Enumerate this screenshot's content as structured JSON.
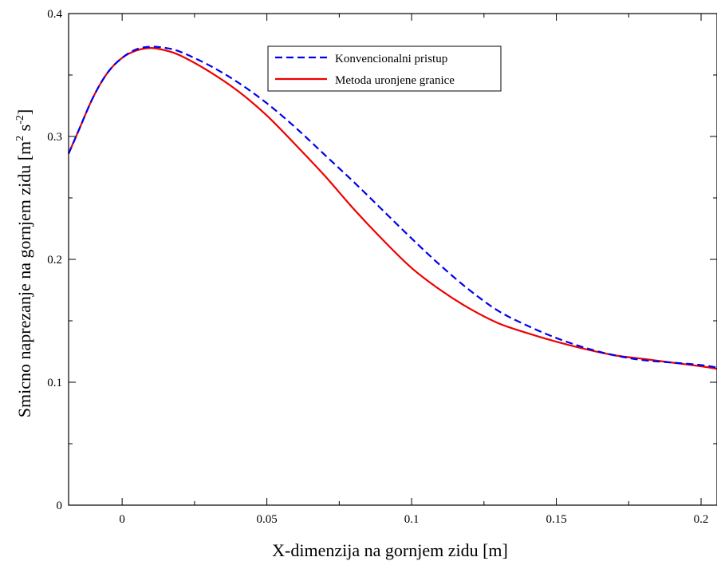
{
  "chart_data": {
    "type": "line",
    "title": "",
    "xlabel": "X-dimenzija na gornjem zidu [m]",
    "ylabel": {
      "text": "Smicno naprezanje na gornjem zidu [m",
      "sup1": "2",
      "mid": " s",
      "sup2": "-2",
      "close": "]"
    },
    "xlim": [
      -0.0185,
      0.2055
    ],
    "ylim": [
      0,
      0.4
    ],
    "xticks": [
      0,
      0.05,
      0.1,
      0.15,
      0.2
    ],
    "xtick_labels": [
      "0",
      "0.05",
      "0.1",
      "0.15",
      "0.2"
    ],
    "yticks": [
      0,
      0.1,
      0.2,
      0.3,
      0.4
    ],
    "ytick_labels": [
      "0",
      "0.1",
      "0.2",
      "0.3",
      "0.4"
    ],
    "grid": false,
    "legend_position": "top-center",
    "series": [
      {
        "name": "Konvencionalni pristup",
        "color": "#0000ee",
        "style": "dashed",
        "x": [
          -0.0185,
          -0.015,
          -0.01,
          -0.005,
          0,
          0.005,
          0.01,
          0.015,
          0.02,
          0.03,
          0.04,
          0.05,
          0.06,
          0.07,
          0.08,
          0.09,
          0.1,
          0.11,
          0.12,
          0.13,
          0.14,
          0.15,
          0.16,
          0.17,
          0.18,
          0.19,
          0.2,
          0.2055
        ],
        "y": [
          0.286,
          0.305,
          0.332,
          0.352,
          0.364,
          0.371,
          0.373,
          0.372,
          0.369,
          0.358,
          0.344,
          0.327,
          0.307,
          0.285,
          0.263,
          0.24,
          0.217,
          0.195,
          0.175,
          0.158,
          0.146,
          0.136,
          0.128,
          0.122,
          0.118,
          0.116,
          0.114,
          0.112
        ]
      },
      {
        "name": "Metoda uronjene granice",
        "color": "#ee0000",
        "style": "solid",
        "x": [
          -0.0185,
          -0.015,
          -0.01,
          -0.005,
          0,
          0.005,
          0.01,
          0.015,
          0.02,
          0.03,
          0.04,
          0.05,
          0.06,
          0.07,
          0.08,
          0.09,
          0.1,
          0.11,
          0.12,
          0.13,
          0.14,
          0.15,
          0.16,
          0.17,
          0.18,
          0.19,
          0.2,
          0.2055
        ],
        "y": [
          0.286,
          0.305,
          0.332,
          0.352,
          0.364,
          0.37,
          0.372,
          0.37,
          0.366,
          0.353,
          0.337,
          0.317,
          0.293,
          0.268,
          0.241,
          0.216,
          0.193,
          0.175,
          0.16,
          0.148,
          0.14,
          0.133,
          0.127,
          0.122,
          0.119,
          0.116,
          0.113,
          0.111
        ]
      }
    ]
  }
}
